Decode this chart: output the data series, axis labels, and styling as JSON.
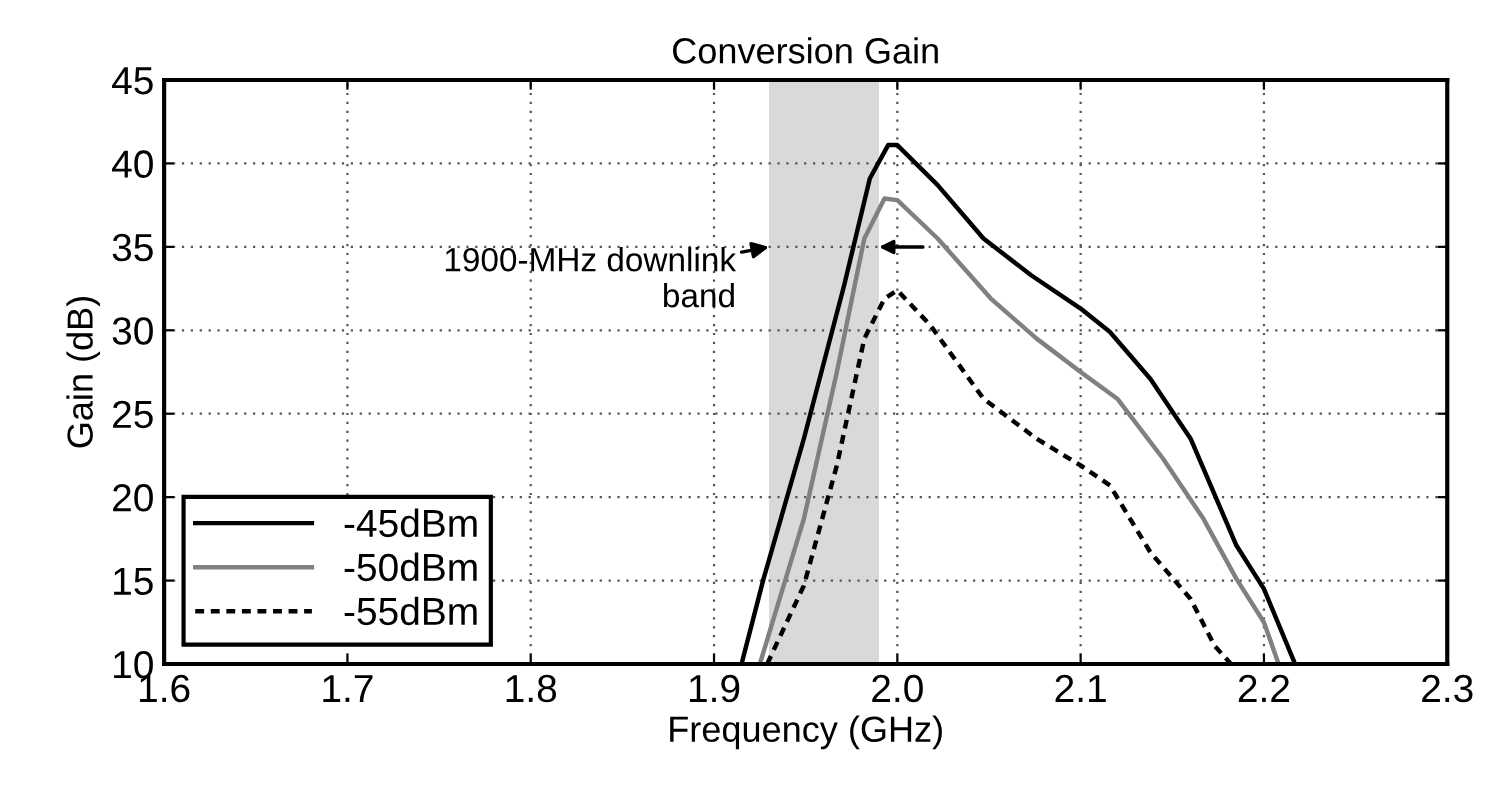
{
  "chart_data": {
    "type": "line",
    "title": "Conversion Gain",
    "xlabel": "Frequency (GHz)",
    "ylabel": "Gain (dB)",
    "xlim": [
      1.6,
      2.3
    ],
    "ylim": [
      10,
      45
    ],
    "xticks": [
      {
        "value": 1.6,
        "label": "1.6"
      },
      {
        "value": 1.7,
        "label": "1.7"
      },
      {
        "value": 1.8,
        "label": "1.8"
      },
      {
        "value": 1.9,
        "label": "1.9"
      },
      {
        "value": 2.0,
        "label": "2.0"
      },
      {
        "value": 2.1,
        "label": "2.1"
      },
      {
        "value": 2.2,
        "label": "2.2"
      },
      {
        "value": 2.3,
        "label": "2.3"
      }
    ],
    "yticks": [
      10,
      15,
      20,
      25,
      30,
      35,
      40,
      45
    ],
    "grid": true,
    "legend": "bottom left",
    "bands": [
      {
        "axis": "x",
        "from": 1.93,
        "to": 1.99,
        "label": "1900-MHz downlink\nband",
        "color": "#d9d9d9"
      }
    ],
    "series": [
      {
        "name": "-45dBm",
        "color": "#000000",
        "line_style": "solid",
        "x": [
          1.915,
          1.927,
          1.949,
          1.971,
          1.985,
          1.995,
          2.0,
          2.022,
          2.047,
          2.073,
          2.1,
          2.116,
          2.138,
          2.16,
          2.185,
          2.2,
          2.217
        ],
        "values": [
          10,
          15.1,
          23.5,
          32.7,
          39.1,
          41.1,
          41.1,
          38.7,
          35.5,
          33.3,
          31.3,
          29.9,
          27.1,
          23.5,
          17.1,
          14.5,
          10
        ]
      },
      {
        "name": "-50dBm",
        "color": "#808080",
        "line_style": "solid",
        "x": [
          1.925,
          1.949,
          1.967,
          1.982,
          1.993,
          2.0,
          2.022,
          2.051,
          2.076,
          2.1,
          2.12,
          2.145,
          2.167,
          2.185,
          2.2,
          2.208
        ],
        "values": [
          10,
          18.7,
          27.5,
          35.5,
          37.9,
          37.8,
          35.5,
          31.9,
          29.5,
          27.5,
          25.9,
          22.3,
          18.7,
          15.1,
          12.5,
          10
        ]
      },
      {
        "name": "-55dBm",
        "color": "#000000",
        "line_style": "dotted",
        "x": [
          1.929,
          1.949,
          1.967,
          1.982,
          1.993,
          2.0,
          2.018,
          2.047,
          2.076,
          2.1,
          2.116,
          2.138,
          2.16,
          2.173,
          2.182
        ],
        "values": [
          10,
          14.7,
          21.9,
          29.5,
          31.9,
          32.4,
          30.3,
          25.9,
          23.5,
          21.9,
          20.7,
          16.7,
          13.9,
          11.1,
          10
        ]
      }
    ]
  }
}
